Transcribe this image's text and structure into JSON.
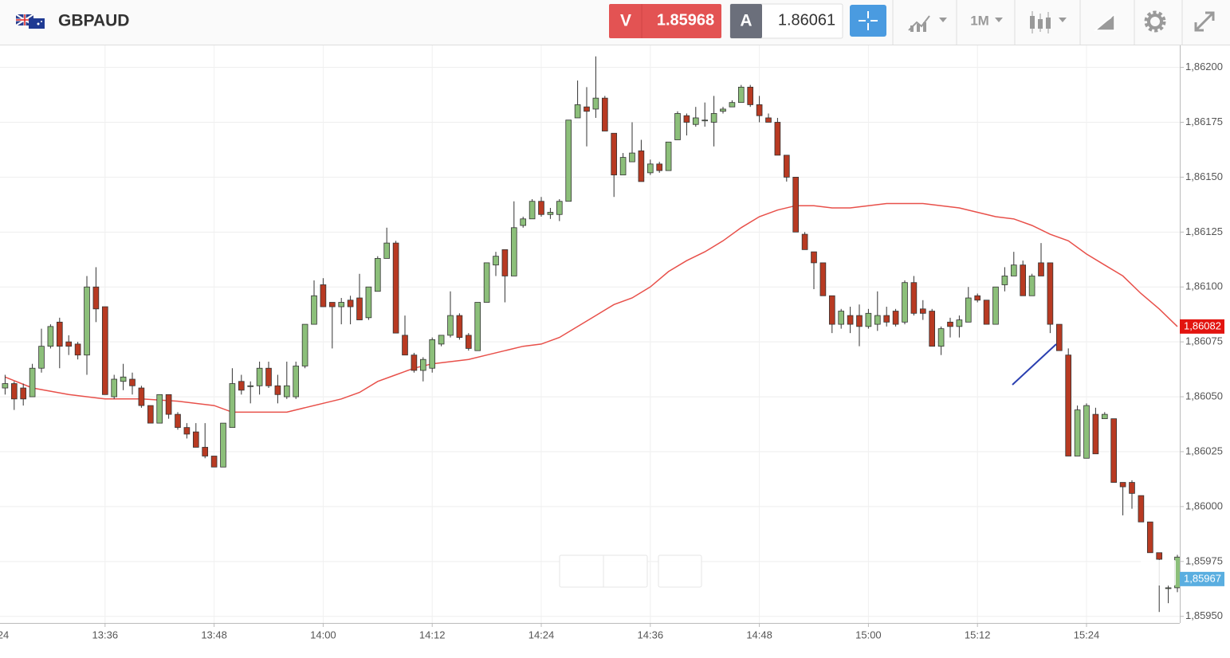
{
  "toolbar": {
    "symbol": "GBPAUD",
    "sell": {
      "label": "V",
      "price": "1.85968"
    },
    "buy": {
      "label": "A",
      "price": "1.86061"
    },
    "timeframe": "1M"
  },
  "chart_data": {
    "type": "candlestick",
    "up_color": "#8cbf7a",
    "down_color": "#b83a22",
    "grid": true,
    "x": [
      "13:25",
      "13:26",
      "13:27",
      "13:28",
      "13:29",
      "13:30",
      "13:31",
      "13:32",
      "13:33",
      "13:34",
      "13:35",
      "13:36",
      "13:37",
      "13:38",
      "13:39",
      "13:40",
      "13:41",
      "13:42",
      "13:43",
      "13:44",
      "13:45",
      "13:46",
      "13:47",
      "13:48",
      "13:49",
      "13:50",
      "13:51",
      "13:52",
      "13:53",
      "13:54",
      "13:55",
      "13:56",
      "13:57",
      "13:58",
      "13:59",
      "14:00",
      "14:01",
      "14:02",
      "14:03",
      "14:04",
      "14:05",
      "14:06",
      "14:07",
      "14:08",
      "14:09",
      "14:10",
      "14:11",
      "14:12",
      "14:13",
      "14:14",
      "14:15",
      "14:16",
      "14:17",
      "14:18",
      "14:19",
      "14:20",
      "14:21",
      "14:22",
      "14:23",
      "14:24",
      "14:25",
      "14:26",
      "14:27",
      "14:28",
      "14:29",
      "14:30",
      "14:31",
      "14:32",
      "14:33",
      "14:34",
      "14:35",
      "14:36",
      "14:37",
      "14:38",
      "14:39",
      "14:40",
      "14:41",
      "14:42",
      "14:43",
      "14:44",
      "14:45",
      "14:46",
      "14:47",
      "14:48",
      "14:49",
      "14:50",
      "14:51",
      "14:52",
      "14:53",
      "14:54",
      "14:55",
      "14:56",
      "14:57",
      "14:58",
      "14:59",
      "15:00",
      "15:01",
      "15:02",
      "15:03",
      "15:04",
      "15:05",
      "15:06",
      "15:07",
      "15:08",
      "15:09",
      "15:10",
      "15:11",
      "15:12",
      "15:13",
      "15:14",
      "15:15",
      "15:16",
      "15:17",
      "15:18",
      "15:19",
      "15:20",
      "15:21",
      "15:22",
      "15:23",
      "15:24",
      "15:25",
      "15:26",
      "15:27",
      "15:28",
      "15:29",
      "15:30",
      "15:31",
      "15:32",
      "15:33",
      "15:34"
    ],
    "open": [
      1.86054,
      1.86056,
      1.86054,
      1.8605,
      1.86063,
      1.86073,
      1.86084,
      1.86075,
      1.86074,
      1.86069,
      1.861,
      1.86091,
      1.8605,
      1.86057,
      1.86058,
      1.86054,
      1.86046,
      1.86038,
      1.86051,
      1.86042,
      1.86036,
      1.86034,
      1.86027,
      1.86023,
      1.86018,
      1.86036,
      1.86057,
      1.86055,
      1.86055,
      1.86063,
      1.86055,
      1.8605,
      1.8605,
      1.86064,
      1.86083,
      1.86101,
      1.86093,
      1.86091,
      1.86094,
      1.86095,
      1.86086,
      1.86098,
      1.86113,
      1.8612,
      1.86078,
      1.86069,
      1.86062,
      1.86063,
      1.86074,
      1.86078,
      1.86087,
      1.86078,
      1.86071,
      1.86093,
      1.8611,
      1.86117,
      1.86105,
      1.86128,
      1.86131,
      1.86139,
      1.86133,
      1.86133,
      1.86139,
      1.86177,
      1.86182,
      1.86181,
      1.86186,
      1.8617,
      1.86151,
      1.86157,
      1.86162,
      1.86152,
      1.86156,
      1.86153,
      1.86167,
      1.86178,
      1.86174,
      1.86176,
      1.86175,
      1.8618,
      1.86182,
      1.86184,
      1.86191,
      1.86183,
      1.86177,
      1.86175,
      1.8616,
      1.8615,
      1.86124,
      1.86116,
      1.86111,
      1.86096,
      1.86083,
      1.86087,
      1.86087,
      1.86082,
      1.86083,
      1.86087,
      1.86089,
      1.86084,
      1.86102,
      1.8609,
      1.86089,
      1.86073,
      1.86084,
      1.86082,
      1.86084,
      1.86096,
      1.86094,
      1.86083,
      1.86101,
      1.86105,
      1.8611,
      1.86096,
      1.86111,
      1.86111,
      1.86083,
      1.86069,
      1.86023,
      1.86022,
      1.86042,
      1.8604,
      1.8604,
      1.86011,
      1.86011,
      1.86005,
      1.85993,
      1.85979,
      1.85963,
      1.85963
    ],
    "high": [
      1.8606,
      1.86057,
      1.86056,
      1.86065,
      1.86081,
      1.86083,
      1.86086,
      1.86078,
      1.86075,
      1.86105,
      1.86109,
      1.86091,
      1.8606,
      1.86065,
      1.86061,
      1.86055,
      1.86046,
      1.86051,
      1.86051,
      1.86043,
      1.86038,
      1.86038,
      1.86038,
      1.86023,
      1.86038,
      1.86063,
      1.8606,
      1.86057,
      1.86066,
      1.86066,
      1.8606,
      1.86066,
      1.86066,
      1.86083,
      1.86103,
      1.86104,
      1.86093,
      1.86095,
      1.86096,
      1.86106,
      1.861,
      1.86114,
      1.86127,
      1.86121,
      1.86087,
      1.8607,
      1.86068,
      1.86077,
      1.86078,
      1.86098,
      1.86088,
      1.86079,
      1.86093,
      1.86111,
      1.86116,
      1.86117,
      1.86139,
      1.86132,
      1.8614,
      1.86141,
      1.86136,
      1.8614,
      1.86176,
      1.86194,
      1.86191,
      1.86205,
      1.86187,
      1.8617,
      1.86161,
      1.86175,
      1.86167,
      1.86158,
      1.86157,
      1.86166,
      1.8618,
      1.86179,
      1.86182,
      1.86184,
      1.86187,
      1.86182,
      1.86185,
      1.86192,
      1.86192,
      1.86187,
      1.86179,
      1.86177,
      1.8616,
      1.8615,
      1.86125,
      1.86116,
      1.86111,
      1.86096,
      1.8609,
      1.86091,
      1.86092,
      1.8609,
      1.86098,
      1.86091,
      1.8609,
      1.86103,
      1.86105,
      1.86094,
      1.8609,
      1.86082,
      1.86086,
      1.86087,
      1.861,
      1.86097,
      1.86094,
      1.861,
      1.86109,
      1.86116,
      1.86112,
      1.86106,
      1.8612,
      1.86111,
      1.86083,
      1.86072,
      1.86046,
      1.86047,
      1.86045,
      1.86043,
      1.8604,
      1.86011,
      1.86012,
      1.86005,
      1.85993,
      1.85979,
      1.85964,
      1.85978
    ],
    "low": [
      1.86051,
      1.86044,
      1.86046,
      1.8605,
      1.86061,
      1.86072,
      1.86063,
      1.86069,
      1.86067,
      1.8606,
      1.86084,
      1.86051,
      1.86049,
      1.86053,
      1.86051,
      1.86045,
      1.86038,
      1.86038,
      1.8604,
      1.86035,
      1.86031,
      1.86027,
      1.86022,
      1.86018,
      1.86018,
      1.86036,
      1.86051,
      1.86047,
      1.86051,
      1.86054,
      1.86047,
      1.86049,
      1.86049,
      1.86063,
      1.86083,
      1.86091,
      1.86072,
      1.86083,
      1.86083,
      1.86085,
      1.86085,
      1.86098,
      1.86113,
      1.86079,
      1.86069,
      1.86061,
      1.86057,
      1.86061,
      1.86073,
      1.86077,
      1.86076,
      1.86071,
      1.86071,
      1.86093,
      1.86105,
      1.86093,
      1.86105,
      1.86127,
      1.86131,
      1.86132,
      1.86131,
      1.8613,
      1.86139,
      1.86177,
      1.86164,
      1.86177,
      1.86171,
      1.86141,
      1.86151,
      1.86157,
      1.86148,
      1.86151,
      1.86152,
      1.86153,
      1.86167,
      1.86169,
      1.86173,
      1.86173,
      1.86164,
      1.86179,
      1.86182,
      1.86184,
      1.86182,
      1.86175,
      1.86175,
      1.8616,
      1.86148,
      1.86125,
      1.86117,
      1.86099,
      1.86096,
      1.86079,
      1.86081,
      1.86079,
      1.86073,
      1.86081,
      1.8608,
      1.86082,
      1.86082,
      1.86083,
      1.86087,
      1.86085,
      1.86073,
      1.86069,
      1.86077,
      1.86077,
      1.86084,
      1.86093,
      1.86083,
      1.86083,
      1.86098,
      1.86105,
      1.86096,
      1.86096,
      1.86105,
      1.86079,
      1.86071,
      1.86023,
      1.86023,
      1.86022,
      1.86024,
      1.8604,
      1.86011,
      1.85996,
      1.85999,
      1.85993,
      1.85979,
      1.85952,
      1.85956,
      1.85961
    ],
    "close": [
      1.86056,
      1.86049,
      1.86049,
      1.86063,
      1.86073,
      1.86082,
      1.86073,
      1.86073,
      1.86069,
      1.861,
      1.8609,
      1.86051,
      1.86058,
      1.86059,
      1.86055,
      1.86046,
      1.86038,
      1.86051,
      1.86042,
      1.86036,
      1.86033,
      1.86027,
      1.86023,
      1.86018,
      1.86038,
      1.86056,
      1.86053,
      1.86055,
      1.86063,
      1.86055,
      1.86051,
      1.86055,
      1.86064,
      1.86083,
      1.86096,
      1.86091,
      1.86091,
      1.86093,
      1.86091,
      1.86085,
      1.861,
      1.86113,
      1.8612,
      1.86079,
      1.86069,
      1.86062,
      1.86067,
      1.86076,
      1.86078,
      1.86087,
      1.86077,
      1.86072,
      1.86093,
      1.86111,
      1.86114,
      1.86105,
      1.86127,
      1.86131,
      1.86139,
      1.86133,
      1.86134,
      1.86139,
      1.86176,
      1.86183,
      1.8618,
      1.86186,
      1.86171,
      1.86151,
      1.86159,
      1.86161,
      1.86148,
      1.86156,
      1.86153,
      1.86166,
      1.86179,
      1.86175,
      1.86177,
      1.86176,
      1.86179,
      1.86181,
      1.86184,
      1.86191,
      1.86183,
      1.86178,
      1.86175,
      1.8616,
      1.8615,
      1.86125,
      1.86117,
      1.86111,
      1.86096,
      1.86083,
      1.86089,
      1.86083,
      1.86082,
      1.86088,
      1.86087,
      1.86084,
      1.86083,
      1.86102,
      1.86088,
      1.86088,
      1.86073,
      1.86081,
      1.86082,
      1.86085,
      1.86095,
      1.86094,
      1.86083,
      1.861,
      1.86105,
      1.8611,
      1.86096,
      1.86105,
      1.86105,
      1.86083,
      1.86071,
      1.86023,
      1.86044,
      1.86046,
      1.86024,
      1.86042,
      1.86011,
      1.86009,
      1.86006,
      1.85993,
      1.85979,
      1.85976,
      1.85963,
      1.85977
    ],
    "moving_average": {
      "color": "#e8504a",
      "x": [
        "13:25",
        "13:28",
        "13:32",
        "13:36",
        "13:40",
        "13:44",
        "13:48",
        "13:50",
        "13:52",
        "13:56",
        "13:58",
        "14:00",
        "14:02",
        "14:04",
        "14:06",
        "14:08",
        "14:10",
        "14:12",
        "14:14",
        "14:16",
        "14:18",
        "14:20",
        "14:22",
        "14:24",
        "14:26",
        "14:28",
        "14:30",
        "14:32",
        "14:34",
        "14:36",
        "14:38",
        "14:40",
        "14:42",
        "14:44",
        "14:46",
        "14:48",
        "14:50",
        "14:52",
        "14:54",
        "14:56",
        "14:58",
        "15:00",
        "15:02",
        "15:04",
        "15:06",
        "15:08",
        "15:10",
        "15:12",
        "15:14",
        "15:16",
        "15:18",
        "15:20",
        "15:22",
        "15:24",
        "15:26",
        "15:28",
        "15:30",
        "15:32",
        "15:34"
      ],
      "values": [
        1.86059,
        1.86054,
        1.86051,
        1.86049,
        1.86049,
        1.86048,
        1.86046,
        1.86043,
        1.86043,
        1.86043,
        1.86045,
        1.86047,
        1.86049,
        1.86052,
        1.86057,
        1.8606,
        1.86063,
        1.86065,
        1.86066,
        1.86067,
        1.86069,
        1.86071,
        1.86073,
        1.86074,
        1.86077,
        1.86082,
        1.86087,
        1.86092,
        1.86095,
        1.861,
        1.86107,
        1.86112,
        1.86116,
        1.86121,
        1.86127,
        1.86132,
        1.86135,
        1.86137,
        1.86137,
        1.86136,
        1.86136,
        1.86137,
        1.86138,
        1.86138,
        1.86138,
        1.86137,
        1.86136,
        1.86134,
        1.86132,
        1.86131,
        1.86128,
        1.86124,
        1.86121,
        1.86115,
        1.8611,
        1.86105,
        1.86097,
        1.8609,
        1.86082
      ]
    },
    "price_markers": [
      {
        "value": 1.86082,
        "label": "1,86082",
        "color": "#e3140f"
      },
      {
        "value": 1.85967,
        "label": "1,85967",
        "color": "#5aaee0"
      }
    ],
    "xlim": [
      "13:24",
      "15:34"
    ],
    "xticks": [
      "13:24",
      "13:36",
      "13:48",
      "14:00",
      "14:12",
      "14:24",
      "14:36",
      "14:48",
      "15:00",
      "15:12",
      "15:24"
    ],
    "ylim": [
      1.85947,
      1.8621
    ],
    "yticks": [
      {
        "value": 1.8595,
        "label": "1,85950"
      },
      {
        "value": 1.85975,
        "label": "1,85975"
      },
      {
        "value": 1.86,
        "label": "1,86000"
      },
      {
        "value": 1.86025,
        "label": "1,86025"
      },
      {
        "value": 1.8605,
        "label": "1,86050"
      },
      {
        "value": 1.86075,
        "label": "1,86075"
      },
      {
        "value": 1.861,
        "label": "1,86100"
      },
      {
        "value": 1.86125,
        "label": "1,86125"
      },
      {
        "value": 1.8615,
        "label": "1,86150"
      },
      {
        "value": 1.86175,
        "label": "1,86175"
      },
      {
        "value": 1.862,
        "label": "1,86200"
      }
    ]
  }
}
